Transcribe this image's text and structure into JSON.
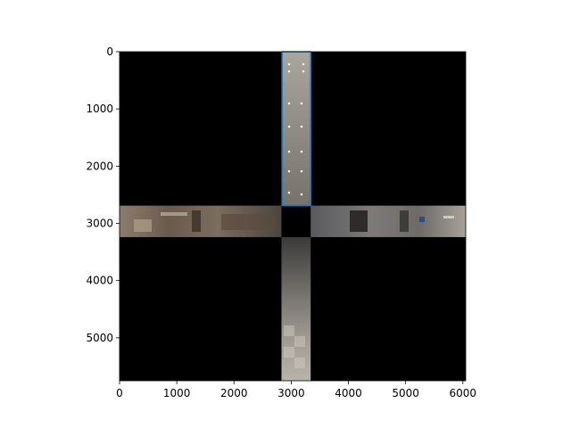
{
  "figure": {
    "xlim": [
      0,
      6050
    ],
    "ylim": [
      5750,
      0
    ],
    "x_ticks": [
      {
        "value": 0,
        "label": "0"
      },
      {
        "value": 1000,
        "label": "1000"
      },
      {
        "value": 2000,
        "label": "2000"
      },
      {
        "value": 3000,
        "label": "3000"
      },
      {
        "value": 4000,
        "label": "4000"
      },
      {
        "value": 5000,
        "label": "5000"
      },
      {
        "value": 6000,
        "label": "6000"
      }
    ],
    "y_ticks": [
      {
        "value": 0,
        "label": "0"
      },
      {
        "value": 1000,
        "label": "1000"
      },
      {
        "value": 2000,
        "label": "2000"
      },
      {
        "value": 3000,
        "label": "3000"
      },
      {
        "value": 4000,
        "label": "4000"
      },
      {
        "value": 5000,
        "label": "5000"
      }
    ],
    "background_color": "#000000",
    "highlight_box": {
      "x0": 2840,
      "x1": 3340,
      "y0": 0,
      "y1": 2690,
      "color": "#1f77b4"
    },
    "image_regions": [
      {
        "name": "ceiling-strip",
        "x0": 2830,
        "x1": 3340,
        "y0": 0,
        "y1": 2690
      },
      {
        "name": "left-wall-strip",
        "x0": 0,
        "x1": 2830,
        "y0": 2690,
        "y1": 3240
      },
      {
        "name": "right-wall-strip",
        "x0": 3340,
        "x1": 6050,
        "y0": 2690,
        "y1": 3240
      },
      {
        "name": "floor-strip",
        "x0": 2830,
        "x1": 3340,
        "y0": 3240,
        "y1": 5750
      }
    ]
  }
}
